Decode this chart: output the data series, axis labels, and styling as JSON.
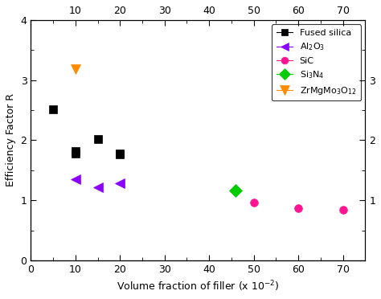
{
  "xlabel": "Volume fraction of filler (x 10$^{-2}$)",
  "ylabel": "Efficiency Factor R",
  "xlim": [
    0,
    75
  ],
  "ylim": [
    0,
    4
  ],
  "xticks_major": [
    0,
    10,
    20,
    30,
    40,
    50,
    60,
    70
  ],
  "yticks_major": [
    0,
    1,
    2,
    3,
    4
  ],
  "series": [
    {
      "label": "Fused silica",
      "x": [
        5,
        10,
        10,
        15,
        20,
        20
      ],
      "y": [
        2.52,
        1.78,
        1.82,
        2.02,
        1.76,
        1.78
      ],
      "color": "#000000",
      "marker": "s",
      "markersize": 7
    },
    {
      "label": "Al$_2$O$_3$",
      "x": [
        10,
        15,
        20
      ],
      "y": [
        1.35,
        1.22,
        1.28
      ],
      "color": "#8B00FF",
      "marker": "<",
      "markersize": 8
    },
    {
      "label": "SiC",
      "x": [
        50,
        60,
        70
      ],
      "y": [
        0.96,
        0.87,
        0.84
      ],
      "color": "#FF1493",
      "marker": "o",
      "markersize": 7
    },
    {
      "label": "Si$_3$N$_4$",
      "x": [
        46
      ],
      "y": [
        1.17
      ],
      "color": "#00CC00",
      "marker": "D",
      "markersize": 8
    },
    {
      "label": "ZrMgMo$_3$O$_{12}$",
      "x": [
        10
      ],
      "y": [
        3.18
      ],
      "color": "#FF8C00",
      "marker": "v",
      "markersize": 9
    }
  ]
}
